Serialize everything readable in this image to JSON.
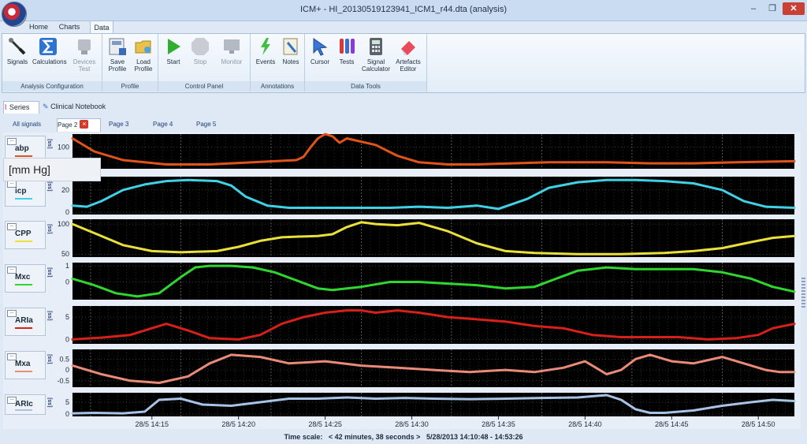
{
  "window": {
    "title": "ICM+ -  HI_20130519123941_ICM1_r44.dta (analysis)",
    "minimize": "–",
    "maximize": "❐",
    "close": "✕"
  },
  "ribbon_tabs": [
    "Home",
    "Charts",
    "Data"
  ],
  "ribbon_groups": [
    {
      "label": "Analysis Configuration",
      "buttons": [
        {
          "label": "Signals",
          "icon": "signals-icon",
          "disabled": false
        },
        {
          "label": "Calculations",
          "icon": "sigma-icon",
          "disabled": false
        },
        {
          "label": "Devices\nTest",
          "icon": "devices-icon",
          "disabled": true
        }
      ]
    },
    {
      "label": "Profile",
      "buttons": [
        {
          "label": "Save\nProfile",
          "icon": "save-profile-icon",
          "disabled": false
        },
        {
          "label": "Load\nProfile",
          "icon": "load-profile-icon",
          "disabled": false
        }
      ]
    },
    {
      "label": "Control Panel",
      "buttons": [
        {
          "label": "Start",
          "icon": "play-icon",
          "disabled": false
        },
        {
          "label": "Stop",
          "icon": "stop-icon",
          "disabled": true
        },
        {
          "label": "Monitor",
          "icon": "monitor-icon",
          "disabled": true
        }
      ]
    },
    {
      "label": "Annotations",
      "buttons": [
        {
          "label": "Events",
          "icon": "events-icon",
          "disabled": false
        },
        {
          "label": "Notes",
          "icon": "notes-icon",
          "disabled": false
        }
      ]
    },
    {
      "label": "Data Tools",
      "buttons": [
        {
          "label": "Cursor",
          "icon": "cursor-icon",
          "disabled": false
        },
        {
          "label": "Tests",
          "icon": "test-tubes-icon",
          "disabled": false
        },
        {
          "label": "Signal\nCalculator",
          "icon": "calculator-icon",
          "disabled": false
        },
        {
          "label": "Artefacts\nEditor",
          "icon": "eraser-icon",
          "disabled": false
        }
      ]
    }
  ],
  "series_tabs": [
    "Series",
    "Clinical Notebook"
  ],
  "page_tabs": [
    "All signals",
    "Page 2",
    "Page 3",
    "Page 4",
    "Page 5"
  ],
  "active_page": "Page 2",
  "unit_button": "ss",
  "tooltip": "[mm Hg]",
  "colors": {
    "abp": "#e0541a",
    "icp": "#3fd2e6",
    "cpp": "#e9e03a",
    "mxc": "#2fd62f",
    "aria": "#d8201a",
    "mxa": "#e98b78",
    "aric": "#a7c3e6",
    "plot_bg": "#000000",
    "grid": "#6b6b6b"
  },
  "chart_data": [
    {
      "type": "line",
      "series": [
        {
          "name": "abp",
          "x": [
            0,
            3,
            7,
            13,
            19,
            25,
            31,
            32,
            33,
            34,
            35,
            36,
            37,
            38,
            42,
            45,
            48,
            52,
            56,
            61,
            66,
            74,
            80,
            86,
            92,
            100
          ],
          "values": [
            108,
            96,
            88,
            84,
            84,
            86,
            88,
            91,
            100,
            108,
            112,
            110,
            104,
            108,
            102,
            92,
            86,
            84,
            84,
            85,
            86,
            86,
            85,
            85,
            86,
            87
          ]
        }
      ],
      "ylim": [
        80,
        112
      ],
      "yticks": [
        100
      ],
      "tick_labels": [
        "100"
      ]
    },
    {
      "type": "line",
      "series": [
        {
          "name": "icp",
          "x": [
            0,
            2,
            4,
            7,
            10,
            13,
            16,
            20,
            22,
            24,
            27,
            30,
            38,
            44,
            48,
            52,
            56,
            59,
            63,
            66,
            70,
            74,
            78,
            82,
            86,
            90,
            93,
            96,
            100
          ],
          "values": [
            6,
            5,
            10,
            20,
            25,
            28,
            29,
            28,
            24,
            14,
            6,
            4,
            4,
            4,
            5,
            4,
            6,
            3,
            12,
            22,
            27,
            29,
            29,
            28,
            26,
            20,
            10,
            5,
            4
          ]
        }
      ],
      "ylim": [
        -2,
        32
      ],
      "yticks": [
        20,
        0
      ],
      "tick_labels": [
        "20",
        "0"
      ]
    },
    {
      "type": "line",
      "series": [
        {
          "name": "CPP",
          "x": [
            0,
            3,
            7,
            11,
            15,
            20,
            23,
            26,
            29,
            31,
            34,
            36,
            38,
            40,
            42,
            45,
            48,
            52,
            56,
            60,
            64,
            70,
            76,
            82,
            86,
            90,
            94,
            97,
            100
          ],
          "values": [
            100,
            85,
            65,
            55,
            53,
            55,
            62,
            72,
            78,
            79,
            80,
            83,
            95,
            103,
            100,
            98,
            102,
            88,
            68,
            55,
            52,
            50,
            50,
            52,
            55,
            60,
            70,
            77,
            80
          ]
        }
      ],
      "ylim": [
        45,
        108
      ],
      "yticks": [
        100,
        50
      ],
      "tick_labels": [
        "100",
        "50"
      ]
    },
    {
      "type": "line",
      "series": [
        {
          "name": "Mxc",
          "x": [
            0,
            3,
            6,
            9,
            12,
            15,
            17,
            19,
            22,
            25,
            28,
            31,
            34,
            36,
            40,
            44,
            48,
            52,
            56,
            60,
            64,
            67,
            70,
            74,
            78,
            82,
            86,
            90,
            94,
            97,
            100
          ],
          "values": [
            0.2,
            -0.2,
            -0.7,
            -0.9,
            -0.7,
            0.3,
            0.9,
            1,
            1,
            0.9,
            0.6,
            0.1,
            -0.4,
            -0.5,
            -0.3,
            0,
            0,
            -0.1,
            -0.2,
            -0.4,
            -0.3,
            0.2,
            0.7,
            0.9,
            0.8,
            0.8,
            0.8,
            0.6,
            0.2,
            -0.3,
            -0.6
          ]
        }
      ],
      "ylim": [
        -1.1,
        1.2
      ],
      "yticks": [
        1,
        0
      ],
      "tick_labels": [
        "1",
        "0"
      ]
    },
    {
      "type": "line",
      "series": [
        {
          "name": "ARIa",
          "x": [
            0,
            4,
            8,
            11,
            13,
            16,
            19,
            23,
            26,
            29,
            32,
            35,
            38,
            40,
            42,
            45,
            48,
            52,
            56,
            60,
            64,
            68,
            72,
            76,
            80,
            84,
            88,
            92,
            95,
            97,
            100
          ],
          "values": [
            0,
            0.4,
            1,
            2.5,
            3.5,
            2,
            0.3,
            0,
            1,
            3.5,
            5,
            6,
            6.5,
            6.5,
            6,
            6.5,
            6,
            5,
            4.5,
            4,
            3,
            2.5,
            1,
            0.5,
            0.5,
            0.5,
            0,
            0.3,
            1,
            2.5,
            3.5
          ]
        }
      ],
      "ylim": [
        -1,
        7.5
      ],
      "yticks": [
        5,
        0
      ],
      "tick_labels": [
        "5",
        "0"
      ]
    },
    {
      "type": "line",
      "series": [
        {
          "name": "Mxa",
          "x": [
            0,
            4,
            8,
            12,
            16,
            19,
            22,
            26,
            30,
            35,
            40,
            45,
            50,
            55,
            60,
            64,
            68,
            71,
            74,
            76,
            78,
            80,
            83,
            86,
            90,
            93,
            96,
            98,
            100
          ],
          "values": [
            0.2,
            -0.2,
            -0.5,
            -0.6,
            -0.3,
            0.3,
            0.7,
            0.6,
            0.3,
            0.4,
            0.2,
            0.1,
            0,
            -0.1,
            0,
            -0.1,
            0.1,
            0.4,
            -0.2,
            0,
            0.5,
            0.7,
            0.4,
            0.3,
            0.6,
            0.3,
            0,
            -0.1,
            -0.1
          ]
        }
      ],
      "ylim": [
        -0.8,
        0.95
      ],
      "yticks": [
        0.5,
        0,
        -0.5
      ],
      "tick_labels": [
        "0.5",
        "0",
        "-0.5"
      ]
    },
    {
      "type": "line",
      "series": [
        {
          "name": "ARIc",
          "x": [
            0,
            3,
            7,
            10,
            12,
            15,
            18,
            22,
            26,
            30,
            34,
            38,
            42,
            46,
            50,
            55,
            60,
            65,
            70,
            74,
            76,
            78,
            80,
            82,
            86,
            90,
            94,
            97,
            100
          ],
          "values": [
            0.3,
            0.5,
            0.3,
            1,
            6,
            6.5,
            4,
            3.5,
            5,
            6.5,
            6.5,
            7,
            6.5,
            6.8,
            6.5,
            6.3,
            6.5,
            6.8,
            7,
            8,
            6,
            2,
            0.5,
            0.5,
            1.5,
            3.5,
            5,
            6,
            5.5
          ]
        }
      ],
      "ylim": [
        -1,
        9
      ],
      "yticks": [
        5,
        0
      ],
      "tick_labels": [
        "5",
        "0"
      ]
    }
  ],
  "x_axis": {
    "tick_labels": [
      "28/5 14:15",
      "28/5 14:20",
      "28/5 14:25",
      "28/5 14:30",
      "28/5 14:35",
      "28/5 14:40",
      "28/5 14:45",
      "28/5 14:50"
    ],
    "tick_x": [
      11,
      23,
      35,
      47,
      59,
      71,
      83,
      95
    ]
  },
  "timebar": {
    "label": "Time scale:",
    "duration": "< 42 minutes, 38 seconds >",
    "range": "5/28/2013 14:10:48 - 14:53:26"
  }
}
